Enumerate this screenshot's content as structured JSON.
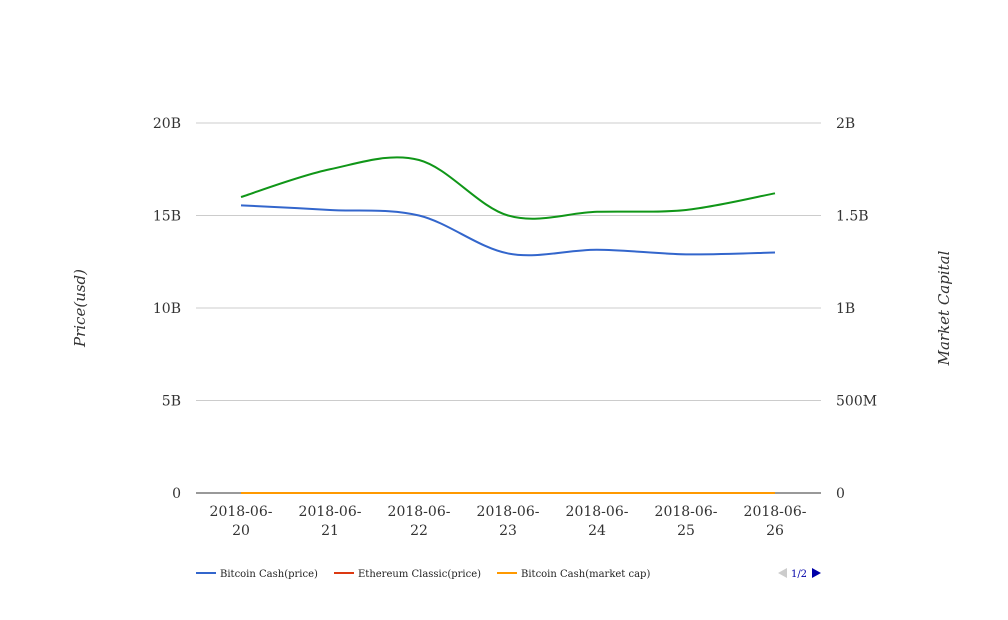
{
  "chart_data": {
    "type": "line",
    "categories": [
      [
        "2018-06-",
        "20"
      ],
      [
        "2018-06-",
        "21"
      ],
      [
        "2018-06-",
        "22"
      ],
      [
        "2018-06-",
        "23"
      ],
      [
        "2018-06-",
        "24"
      ],
      [
        "2018-06-",
        "25"
      ],
      [
        "2018-06-",
        "26"
      ]
    ],
    "y_left": {
      "label": "Price(usd)",
      "range": [
        0,
        20000000000
      ],
      "ticks": [
        0,
        5000000000,
        10000000000,
        15000000000,
        20000000000
      ],
      "tick_labels": [
        "0",
        "5B",
        "10B",
        "15B",
        "20B"
      ]
    },
    "y_right": {
      "label": "Market Capital",
      "range": [
        0,
        2000000000
      ],
      "ticks": [
        0,
        500000000,
        1000000000,
        1500000000,
        2000000000
      ],
      "tick_labels": [
        "0",
        "500M",
        "1B",
        "1.5B",
        "2B"
      ]
    },
    "series": [
      {
        "name": "Bitcoin Cash(price)",
        "axis": "left",
        "color": "#3366cc",
        "values": [
          15550000000,
          15300000000,
          15000000000,
          12950000000,
          13150000000,
          12900000000,
          13000000000
        ]
      },
      {
        "name": "Ethereum Classic(price)",
        "axis": "left",
        "color": "#dc3912",
        "values": [
          0,
          0,
          0,
          0,
          0,
          0,
          0
        ]
      },
      {
        "name": "Bitcoin Cash(market cap)",
        "axis": "left",
        "color": "#ff9900",
        "values": [
          0,
          0,
          0,
          0,
          0,
          0,
          0
        ]
      },
      {
        "axis": "right",
        "color": "#109618",
        "values": [
          1600000000,
          1750000000,
          1800000000,
          1500000000,
          1520000000,
          1530000000,
          1620000000
        ]
      }
    ],
    "legend": {
      "position": "bottom-left",
      "visible_series": [
        0,
        1,
        2
      ],
      "page_indicator": "1/2"
    },
    "grid": true
  }
}
